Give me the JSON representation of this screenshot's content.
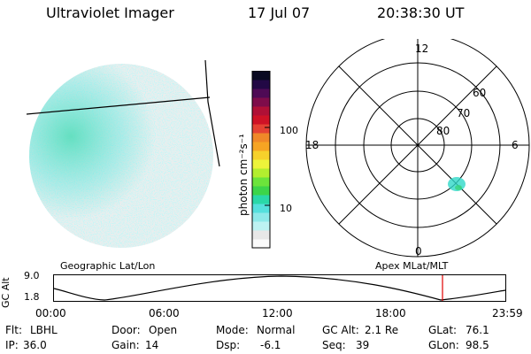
{
  "header": {
    "instrument": "Ultraviolet Imager",
    "date": "17 Jul 07",
    "time": "20:38:30 UT"
  },
  "colorbar": {
    "unit_label": "photon cm⁻²s⁻¹",
    "ticks": [
      "100",
      "10"
    ],
    "colors": [
      "#fbfbfb",
      "#e7e7e7",
      "#bdf2f2",
      "#8ee9e9",
      "#55e0dd",
      "#2ad8a8",
      "#3cd54a",
      "#6ce43b",
      "#b3ee2f",
      "#edf43a",
      "#f6d12b",
      "#f6a423",
      "#f08828",
      "#e54233",
      "#cf1226",
      "#b01036",
      "#7e0c4a",
      "#4e0a55",
      "#220845",
      "#0a0a22"
    ]
  },
  "polar_plot": {
    "mlt_labels": [
      "12",
      "18",
      "6",
      "0"
    ],
    "lat_labels": [
      "60",
      "70",
      "80"
    ]
  },
  "timeline": {
    "left_label": "Geographic Lat/Lon",
    "right_label": "Apex MLat/MLT",
    "y_axis_label": "GC Alt",
    "y_ticks": [
      "9.0",
      "1.8"
    ],
    "x_ticks": [
      "00:00",
      "06:00",
      "12:00",
      "18:00",
      "23:59"
    ]
  },
  "footer": {
    "row1": [
      {
        "label": "Flt:",
        "value": "LBHL"
      },
      {
        "label": "Door:",
        "value": "Open"
      },
      {
        "label": "Mode:",
        "value": "Normal"
      },
      {
        "label": "GC Alt:",
        "value": "2.1 Re"
      },
      {
        "label": "GLat:",
        "value": "76.1"
      }
    ],
    "row2": [
      {
        "label": "IP:",
        "value": "36.0"
      },
      {
        "label": "Gain:",
        "value": "14"
      },
      {
        "label": "Dsp:",
        "value": "-6.1"
      },
      {
        "label": "Seq:",
        "value": "39"
      },
      {
        "label": "GLon:",
        "value": "98.5"
      }
    ]
  }
}
